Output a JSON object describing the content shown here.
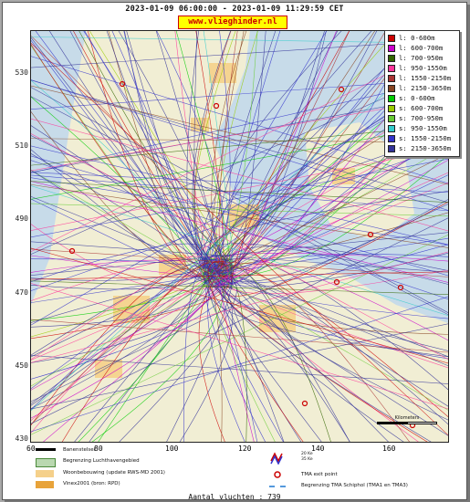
{
  "header": {
    "title": "2023-01-09 06:00:00 - 2023-01-09 11:29:59 CET",
    "website": "www.vlieghinder.nl"
  },
  "axes": {
    "y_ticks": [
      "530",
      "510",
      "490",
      "470",
      "450",
      "430"
    ],
    "x_ticks": [
      "80",
      "100",
      "120",
      "140",
      "160"
    ],
    "x_start": "60"
  },
  "legend": [
    {
      "label": "l: 0-600m",
      "color": "#cc0000"
    },
    {
      "label": "l: 600-700m",
      "color": "#cc00cc"
    },
    {
      "label": "l: 700-950m",
      "color": "#336600"
    },
    {
      "label": "l: 950-1550m",
      "color": "#ff3399"
    },
    {
      "label": "l: 1550-2150m",
      "color": "#aa3333"
    },
    {
      "label": "l: 2150-3650m",
      "color": "#884422"
    },
    {
      "label": "s: 0-600m",
      "color": "#00cc00"
    },
    {
      "label": "s: 600-700m",
      "color": "#99cc00"
    },
    {
      "label": "s: 700-950m",
      "color": "#66cc33"
    },
    {
      "label": "s: 950-1550m",
      "color": "#33cccc"
    },
    {
      "label": "s: 1550-2150m",
      "color": "#3333cc"
    },
    {
      "label": "s: 2150-3650m",
      "color": "#333399"
    }
  ],
  "bottom_legend": {
    "runway": "Banenstelsel",
    "airport_boundary": "Begrenzing Luchthavengebied",
    "residential": "Woonbebouwing (update RWS-MD 2001)",
    "vinex": "Vinex2001 (bron: RPD)",
    "ke_35": "35 Ke",
    "ke_20": "20 Ke",
    "tma_exit": "TMA exit point",
    "tma_boundary": "Begrenzing TMA Schiphol  (TMA1 en TMA3)"
  },
  "footer": {
    "count": "Aantal vluchten : 739"
  },
  "scale": {
    "label": "Kilometers",
    "ticks": [
      "0",
      "5",
      "10"
    ]
  },
  "colors": {
    "water": "#c7dbe9",
    "land": "#f1eed4",
    "urban": "#f5d08a",
    "airport": "#b9d8b0",
    "dense_route": "#2b2b8f"
  }
}
